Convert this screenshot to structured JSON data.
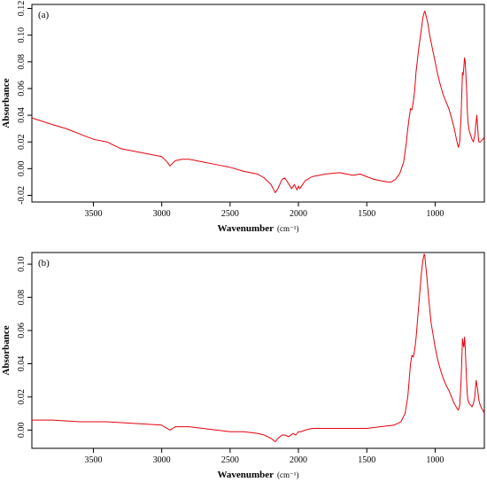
{
  "chart_data": [
    {
      "type": "line",
      "panel_label": "(a)",
      "xlabel": "Wavenumber",
      "xlabel_unit": "(cm⁻¹)",
      "ylabel": "Absorbance",
      "xlim": [
        3950,
        640
      ],
      "ylim": [
        -0.025,
        0.123
      ],
      "x_reversed": true,
      "grid": false,
      "x_ticks": [
        3500,
        3000,
        2500,
        2000,
        1500,
        1000
      ],
      "y_ticks": [
        -0.02,
        0.0,
        0.02,
        0.04,
        0.06,
        0.08,
        0.1,
        0.12
      ],
      "y_tick_labels": [
        "-0.02",
        "0.00",
        "0.02",
        "0.04",
        "0.06",
        "0.08",
        "0.10",
        "0.12"
      ],
      "color": "#e8000b",
      "series": [
        {
          "x": [
            3950,
            3800,
            3700,
            3600,
            3500,
            3400,
            3300,
            3200,
            3100,
            3000,
            2960,
            2940,
            2920,
            2900,
            2850,
            2800,
            2700,
            2600,
            2500,
            2400,
            2300,
            2250,
            2200,
            2170,
            2150,
            2120,
            2100,
            2080,
            2050,
            2030,
            2010,
            2000,
            1990,
            1970,
            1950,
            1900,
            1850,
            1800,
            1700,
            1600,
            1550,
            1500,
            1450,
            1400,
            1350,
            1320,
            1290,
            1260,
            1230,
            1210,
            1200,
            1190,
            1180,
            1170,
            1160,
            1150,
            1140,
            1120,
            1100,
            1090,
            1080,
            1075,
            1070,
            1060,
            1050,
            1040,
            1020,
            1000,
            980,
            960,
            940,
            920,
            900,
            880,
            860,
            840,
            830,
            820,
            810,
            800,
            795,
            790,
            785,
            780,
            775,
            770,
            765,
            760,
            750,
            740,
            730,
            720,
            710,
            700,
            695,
            690,
            685,
            680,
            670,
            660,
            650,
            640
          ],
          "y": [
            0.038,
            0.033,
            0.03,
            0.026,
            0.022,
            0.02,
            0.015,
            0.013,
            0.011,
            0.009,
            0.005,
            0.002,
            0.004,
            0.006,
            0.007,
            0.007,
            0.005,
            0.003,
            0.001,
            -0.002,
            -0.004,
            -0.007,
            -0.012,
            -0.018,
            -0.015,
            -0.008,
            -0.007,
            -0.01,
            -0.015,
            -0.012,
            -0.016,
            -0.013,
            -0.015,
            -0.012,
            -0.009,
            -0.006,
            -0.005,
            -0.004,
            -0.003,
            -0.005,
            -0.004,
            -0.006,
            -0.008,
            -0.009,
            -0.01,
            -0.01,
            -0.008,
            -0.004,
            0.005,
            0.02,
            0.03,
            0.038,
            0.045,
            0.044,
            0.05,
            0.058,
            0.072,
            0.09,
            0.105,
            0.113,
            0.117,
            0.118,
            0.116,
            0.112,
            0.107,
            0.1,
            0.09,
            0.08,
            0.07,
            0.062,
            0.055,
            0.05,
            0.045,
            0.038,
            0.03,
            0.02,
            0.016,
            0.02,
            0.04,
            0.072,
            0.07,
            0.076,
            0.083,
            0.08,
            0.07,
            0.06,
            0.045,
            0.035,
            0.028,
            0.025,
            0.022,
            0.02,
            0.025,
            0.035,
            0.04,
            0.033,
            0.025,
            0.02,
            0.02,
            0.021,
            0.022,
            0.024
          ]
        }
      ]
    },
    {
      "type": "line",
      "panel_label": "(b)",
      "xlabel": "Wavenumber",
      "xlabel_unit": "(cm⁻¹)",
      "ylabel": "Absorbance",
      "xlim": [
        3950,
        640
      ],
      "ylim": [
        -0.011,
        0.107
      ],
      "x_reversed": true,
      "grid": false,
      "x_ticks": [
        3500,
        3000,
        2500,
        2000,
        1500,
        1000
      ],
      "y_ticks": [
        0.0,
        0.02,
        0.04,
        0.06,
        0.08,
        0.1
      ],
      "y_tick_labels": [
        "0.00",
        "0.02",
        "0.04",
        "0.06",
        "0.08",
        "0.10"
      ],
      "color": "#e8000b",
      "series": [
        {
          "x": [
            3950,
            3800,
            3600,
            3400,
            3200,
            3000,
            2960,
            2940,
            2920,
            2900,
            2800,
            2700,
            2600,
            2500,
            2400,
            2300,
            2250,
            2200,
            2170,
            2150,
            2120,
            2100,
            2070,
            2040,
            2020,
            2000,
            1980,
            1950,
            1900,
            1800,
            1700,
            1600,
            1500,
            1400,
            1300,
            1250,
            1220,
            1200,
            1190,
            1180,
            1170,
            1160,
            1150,
            1140,
            1120,
            1100,
            1090,
            1080,
            1075,
            1070,
            1060,
            1050,
            1030,
            1000,
            980,
            960,
            940,
            920,
            900,
            880,
            860,
            840,
            830,
            820,
            810,
            800,
            795,
            790,
            785,
            780,
            775,
            770,
            765,
            760,
            750,
            740,
            730,
            720,
            710,
            700,
            690,
            680,
            670,
            660,
            650,
            640
          ],
          "y": [
            0.006,
            0.006,
            0.005,
            0.005,
            0.004,
            0.003,
            0.001,
            0.0,
            0.001,
            0.002,
            0.002,
            0.001,
            0.0,
            -0.001,
            -0.001,
            -0.002,
            -0.003,
            -0.005,
            -0.007,
            -0.005,
            -0.003,
            -0.003,
            -0.004,
            -0.002,
            -0.003,
            -0.001,
            -0.001,
            0.0,
            0.001,
            0.001,
            0.001,
            0.001,
            0.001,
            0.002,
            0.003,
            0.005,
            0.01,
            0.02,
            0.03,
            0.04,
            0.045,
            0.044,
            0.048,
            0.055,
            0.075,
            0.095,
            0.102,
            0.106,
            0.105,
            0.1,
            0.092,
            0.082,
            0.065,
            0.05,
            0.042,
            0.036,
            0.031,
            0.027,
            0.024,
            0.02,
            0.016,
            0.013,
            0.012,
            0.015,
            0.03,
            0.055,
            0.052,
            0.05,
            0.056,
            0.05,
            0.04,
            0.03,
            0.022,
            0.018,
            0.016,
            0.015,
            0.014,
            0.016,
            0.02,
            0.03,
            0.025,
            0.018,
            0.015,
            0.013,
            0.012,
            0.01
          ]
        }
      ]
    }
  ]
}
